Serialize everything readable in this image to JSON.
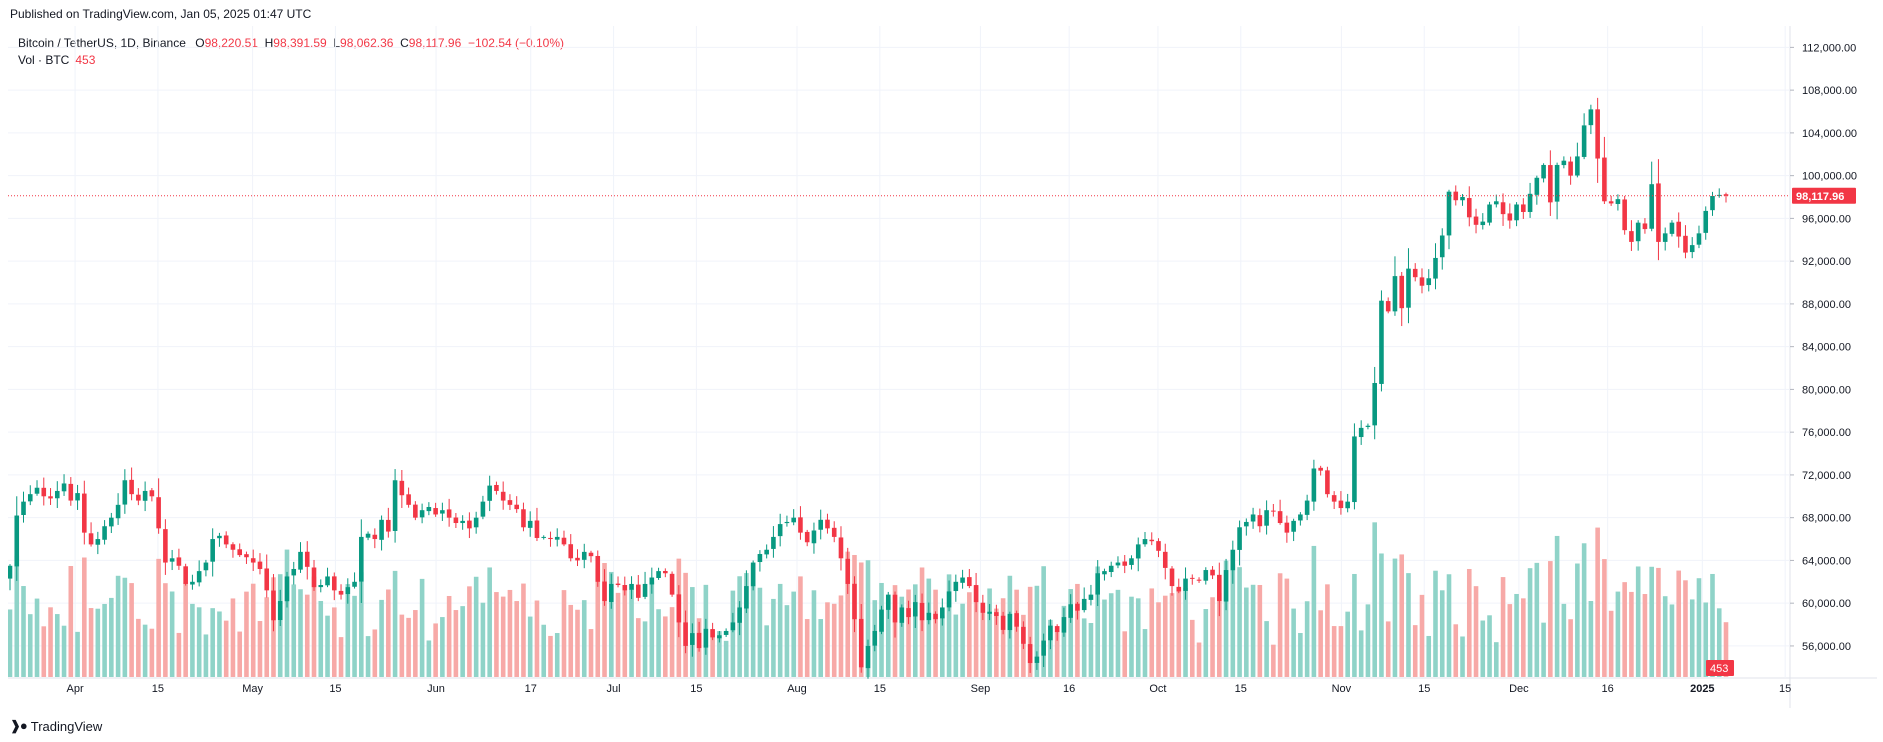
{
  "published": "Published on TradingView.com, Jan 05, 2025 01:47 UTC",
  "brand": {
    "icon": "tradingview-logo-icon",
    "label": "TradingView"
  },
  "legend": {
    "symbol": "Bitcoin / TetherUS, 1D, Binance",
    "o_label": "O",
    "o_value": "98,220.51",
    "h_label": "H",
    "h_value": "98,391.59",
    "l_label": "L",
    "l_value": "98,062.36",
    "c_label": "C",
    "c_value": "98,117.96",
    "change": "−102.54 (−0.10%)",
    "vol_label": "Vol · BTC",
    "vol_value": "453"
  },
  "colors": {
    "up": "#089981",
    "down": "#f23645",
    "vol_up": "#8fd3c8",
    "vol_down": "#f7a9a7",
    "grid": "#f0f3fa",
    "text": "#131722"
  },
  "chart_data": {
    "type": "candlestick",
    "symbol": "Bitcoin / TetherUS",
    "interval": "1D",
    "exchange": "Binance",
    "y_axis": {
      "ylim": [
        53000,
        114000
      ],
      "ticks": [
        56000,
        60000,
        64000,
        68000,
        72000,
        76000,
        80000,
        84000,
        88000,
        92000,
        96000,
        100000,
        104000,
        108000,
        112000
      ],
      "tick_labels": [
        "56,000.00",
        "60,000.00",
        "64,000.00",
        "68,000.00",
        "72,000.00",
        "76,000.00",
        "80,000.00",
        "84,000.00",
        "88,000.00",
        "92,000.00",
        "96,000.00",
        "100,000.00",
        "104,000.00",
        "108,000.00",
        "112,000.00"
      ]
    },
    "x_axis": {
      "start_date": "2024-03-21",
      "end_date": "2025-01-05",
      "ticks": [
        {
          "label": "Apr",
          "date": "2024-04-01"
        },
        {
          "label": "15",
          "date": "2024-04-15"
        },
        {
          "label": "May",
          "date": "2024-05-01"
        },
        {
          "label": "15",
          "date": "2024-05-15"
        },
        {
          "label": "Jun",
          "date": "2024-06-01"
        },
        {
          "label": "17",
          "date": "2024-06-17"
        },
        {
          "label": "Jul",
          "date": "2024-07-01"
        },
        {
          "label": "15",
          "date": "2024-07-15"
        },
        {
          "label": "Aug",
          "date": "2024-08-01"
        },
        {
          "label": "15",
          "date": "2024-08-15"
        },
        {
          "label": "Sep",
          "date": "2024-09-01"
        },
        {
          "label": "16",
          "date": "2024-09-16"
        },
        {
          "label": "Oct",
          "date": "2024-10-01"
        },
        {
          "label": "15",
          "date": "2024-10-15"
        },
        {
          "label": "Nov",
          "date": "2024-11-01"
        },
        {
          "label": "15",
          "date": "2024-11-15"
        },
        {
          "label": "Dec",
          "date": "2024-12-01"
        },
        {
          "label": "16",
          "date": "2024-12-16"
        },
        {
          "label": "2025",
          "date": "2025-01-01"
        },
        {
          "label": "15",
          "date": "2025-01-15"
        }
      ]
    },
    "last_price": 98117.96,
    "last_price_label": "98,117.96",
    "last_volume_label": "453",
    "closes": [
      63500,
      68200,
      69500,
      70200,
      70800,
      70000,
      69800,
      70500,
      71200,
      69600,
      70300,
      66600,
      65500,
      66000,
      67200,
      68000,
      69200,
      71500,
      70200,
      69600,
      70500,
      70000,
      67000,
      63800,
      64200,
      63500,
      61800,
      62000,
      63000,
      63800,
      66000,
      66300,
      65500,
      65000,
      64500,
      64300,
      63800,
      63200,
      61200,
      58400,
      60200,
      62500,
      63200,
      64800,
      63400,
      61500,
      61700,
      62500,
      61200,
      60800,
      61500,
      62000,
      66200,
      66500,
      66000,
      67800,
      66700,
      71500,
      70100,
      69200,
      68000,
      68700,
      69000,
      68300,
      68700,
      68000,
      67500,
      67700,
      67000,
      68000,
      69500,
      71000,
      70500,
      69600,
      69200,
      68800,
      67100,
      67700,
      66100,
      66200,
      66000,
      66200,
      65500,
      64200,
      64000,
      64800,
      64400,
      62000,
      60200,
      61800,
      61700,
      61200,
      61800,
      60500,
      61800,
      62400,
      63000,
      62800,
      60800,
      58200,
      56000,
      57200,
      55800,
      57600,
      56800,
      57000,
      57400,
      58200,
      59600,
      61600,
      63800,
      64600,
      65000,
      66200,
      67400,
      67600,
      68000,
      66600,
      65700,
      66800,
      67800,
      67000,
      66200,
      64200,
      61800,
      58500,
      54000,
      56000,
      57400,
      59400,
      60800,
      58200,
      59600,
      58700,
      60100,
      58400,
      59100,
      58500,
      59600,
      61100,
      62000,
      62400,
      61600,
      60100,
      59100,
      59200,
      58800,
      57500,
      59000,
      57800,
      56200,
      54400,
      55000,
      56500,
      57900,
      57300,
      58700,
      59900,
      59300,
      60400,
      60800,
      62800,
      63000,
      63500,
      63800,
      63500,
      64200,
      65500,
      66000,
      65800,
      64900,
      63300,
      61600,
      61100,
      62300,
      62300,
      62100,
      63100,
      62600,
      60200,
      63100,
      65000,
      67100,
      67600,
      68300,
      67200,
      68700,
      68600,
      67500,
      66600,
      67700,
      68300,
      69600,
      72600,
      72400,
      70200,
      69500,
      68900,
      69500,
      75600,
      76400,
      76600,
      80600,
      88300,
      87300,
      90600,
      87600,
      91300,
      90500,
      89700,
      90400,
      92300,
      94400,
      98500,
      97700,
      98000,
      96100,
      95400,
      95700,
      97300,
      97600,
      96400,
      95800,
      97300,
      96600,
      98300,
      99800,
      101000,
      97500,
      101000,
      101400,
      100000,
      101800,
      104700,
      106200,
      101600,
      97600,
      97400,
      97800,
      94900,
      93800,
      95600,
      95000,
      99200,
      93800,
      94600,
      95600,
      94300,
      92800,
      93500,
      94600,
      96700,
      98100,
      98200,
      98118
    ],
    "volume_max": 60000
  }
}
